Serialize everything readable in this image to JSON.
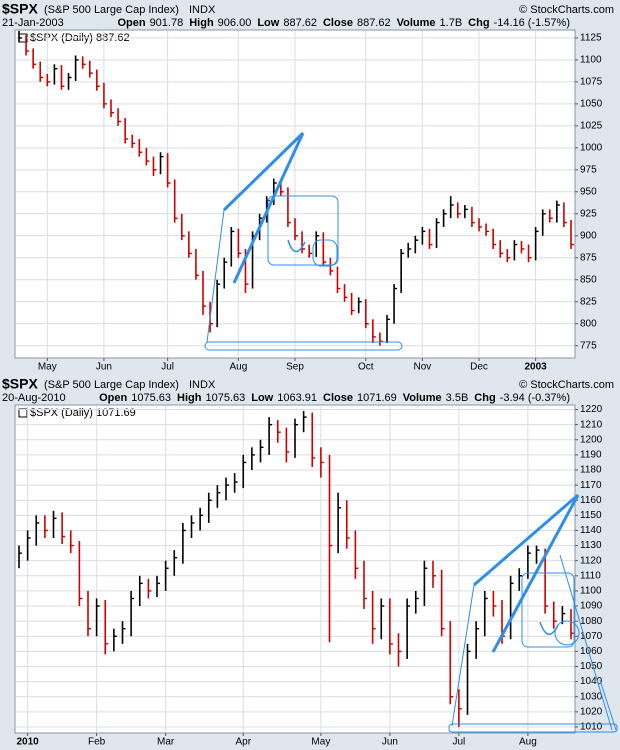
{
  "chart_data": [
    {
      "type": "ohlc",
      "symbol": "$SPX",
      "name": "(S&P 500 Large Cap Index)",
      "exchange": "INDX",
      "credit": "© StockCharts.com",
      "date": "21-Jan-2003",
      "quote": [
        {
          "label": "Open",
          "value": "901.78"
        },
        {
          "label": "High",
          "value": "906.00"
        },
        {
          "label": "Low",
          "value": "887.62"
        },
        {
          "label": "Close",
          "value": "887.62"
        },
        {
          "label": "Volume",
          "value": "1.7B"
        },
        {
          "label": "Chg",
          "value": "-14.16 (-1.57%)"
        }
      ],
      "legend": "$SPX (Daily) 887.62",
      "up_color": "#000000",
      "down_color": "#cc0000",
      "grid": true,
      "high": [
        1133,
        1128,
        1113,
        1098,
        1084,
        1095,
        1094,
        1085,
        1105,
        1104,
        1099,
        1089,
        1074,
        1055,
        1045,
        1034,
        1015,
        1010,
        1000,
        990,
        995,
        994,
        964,
        925,
        905,
        885,
        860,
        825,
        850,
        875,
        910,
        908,
        885,
        905,
        925,
        945,
        965,
        964,
        955,
        920,
        905,
        890,
        905,
        904,
        875,
        865,
        845,
        835,
        830,
        828,
        805,
        790,
        810,
        845,
        885,
        892,
        900,
        910,
        908,
        920,
        930,
        945,
        938,
        935,
        933,
        920,
        914,
        908,
        895,
        885,
        895,
        894,
        890,
        910,
        930,
        930,
        940,
        938,
        918
      ],
      "low": [
        1120,
        1105,
        1090,
        1075,
        1070,
        1072,
        1066,
        1066,
        1076,
        1090,
        1080,
        1065,
        1045,
        1035,
        1025,
        1005,
        1000,
        990,
        980,
        968,
        970,
        955,
        915,
        895,
        875,
        850,
        810,
        790,
        796,
        840,
        865,
        875,
        835,
        840,
        895,
        915,
        935,
        945,
        910,
        895,
        880,
        875,
        876,
        865,
        855,
        835,
        825,
        810,
        812,
        795,
        778,
        775,
        778,
        800,
        835,
        875,
        880,
        890,
        885,
        886,
        910,
        920,
        920,
        920,
        910,
        905,
        900,
        885,
        875,
        870,
        872,
        880,
        870,
        872,
        900,
        915,
        915,
        910,
        885
      ],
      "close": [
        1125,
        1110,
        1095,
        1080,
        1075,
        1090,
        1070,
        1080,
        1100,
        1095,
        1085,
        1070,
        1050,
        1040,
        1030,
        1010,
        1005,
        995,
        985,
        975,
        990,
        960,
        920,
        900,
        880,
        855,
        820,
        800,
        845,
        870,
        905,
        880,
        845,
        900,
        920,
        940,
        960,
        950,
        915,
        900,
        885,
        880,
        900,
        870,
        860,
        840,
        830,
        815,
        825,
        800,
        785,
        780,
        805,
        840,
        880,
        885,
        895,
        905,
        890,
        915,
        925,
        935,
        925,
        930,
        915,
        910,
        905,
        890,
        880,
        875,
        890,
        885,
        875,
        905,
        925,
        920,
        935,
        915,
        890
      ],
      "ylim": [
        761,
        1134
      ],
      "yticks": [
        775,
        800,
        825,
        850,
        875,
        900,
        925,
        950,
        975,
        1000,
        1025,
        1050,
        1075,
        1100,
        1125
      ],
      "xticks": [
        {
          "value": 4,
          "label": "May"
        },
        {
          "value": 12,
          "label": "Jun"
        },
        {
          "value": 21,
          "label": "Jul"
        },
        {
          "value": 31,
          "label": "Aug"
        },
        {
          "value": 39,
          "label": "Sep"
        },
        {
          "value": 49,
          "label": "Oct"
        },
        {
          "value": 57,
          "label": "Nov"
        },
        {
          "value": 65,
          "label": "Dec"
        },
        {
          "value": 73,
          "label": "2003"
        }
      ]
    },
    {
      "type": "ohlc",
      "symbol": "$SPX",
      "name": "(S&P 500 Large Cap Index)",
      "exchange": "INDX",
      "credit": "© StockCharts.com",
      "date": "20-Aug-2010",
      "quote": [
        {
          "label": "Open",
          "value": "1075.63"
        },
        {
          "label": "High",
          "value": "1075.63"
        },
        {
          "label": "Low",
          "value": "1063.91"
        },
        {
          "label": "Close",
          "value": "1071.69"
        },
        {
          "label": "Volume",
          "value": "3.5B"
        },
        {
          "label": "Chg",
          "value": "-3.94 (-0.37%)"
        }
      ],
      "legend": "$SPX (Daily) 1071.69",
      "up_color": "#000000",
      "down_color": "#cc0000",
      "grid": true,
      "high": [
        1130,
        1140,
        1150,
        1150,
        1153,
        1152,
        1140,
        1133,
        1100,
        1095,
        1094,
        1075,
        1080,
        1100,
        1110,
        1108,
        1110,
        1120,
        1127,
        1145,
        1150,
        1155,
        1165,
        1170,
        1175,
        1178,
        1190,
        1195,
        1200,
        1215,
        1213,
        1208,
        1214,
        1219,
        1218,
        1195,
        1190,
        1165,
        1160,
        1140,
        1120,
        1100,
        1095,
        1095,
        1072,
        1095,
        1100,
        1120,
        1120,
        1114,
        1080,
        1035,
        1065,
        1080,
        1100,
        1100,
        1094,
        1110,
        1115,
        1130,
        1130,
        1128,
        1093,
        1090,
        1088
      ],
      "low": [
        1115,
        1120,
        1130,
        1135,
        1135,
        1131,
        1125,
        1090,
        1070,
        1070,
        1058,
        1060,
        1065,
        1070,
        1090,
        1095,
        1096,
        1100,
        1110,
        1118,
        1135,
        1140,
        1145,
        1155,
        1160,
        1165,
        1168,
        1180,
        1185,
        1190,
        1198,
        1185,
        1188,
        1205,
        1182,
        1175,
        1066,
        1125,
        1128,
        1108,
        1088,
        1065,
        1068,
        1058,
        1050,
        1055,
        1085,
        1090,
        1102,
        1070,
        1025,
        1010,
        1018,
        1055,
        1070,
        1083,
        1065,
        1068,
        1100,
        1108,
        1118,
        1085,
        1075,
        1078,
        1068
      ],
      "close": [
        1125,
        1135,
        1145,
        1140,
        1148,
        1136,
        1130,
        1095,
        1075,
        1090,
        1065,
        1070,
        1075,
        1095,
        1105,
        1100,
        1105,
        1115,
        1122,
        1140,
        1145,
        1150,
        1160,
        1165,
        1170,
        1172,
        1185,
        1190,
        1195,
        1210,
        1205,
        1192,
        1210,
        1215,
        1188,
        1185,
        1130,
        1155,
        1135,
        1115,
        1095,
        1075,
        1090,
        1065,
        1060,
        1090,
        1095,
        1115,
        1110,
        1075,
        1030,
        1022,
        1060,
        1075,
        1095,
        1090,
        1070,
        1105,
        1110,
        1125,
        1127,
        1090,
        1080,
        1085,
        1072
      ],
      "ylim": [
        1006,
        1223
      ],
      "yticks": [
        1010,
        1020,
        1030,
        1040,
        1050,
        1060,
        1070,
        1080,
        1090,
        1100,
        1110,
        1120,
        1130,
        1140,
        1150,
        1160,
        1170,
        1180,
        1190,
        1200,
        1210,
        1220
      ],
      "xticks": [
        {
          "value": 1,
          "label": "2010"
        },
        {
          "value": 9,
          "label": "Feb"
        },
        {
          "value": 17,
          "label": "Mar"
        },
        {
          "value": 26,
          "label": "Apr"
        },
        {
          "value": 35,
          "label": "May"
        },
        {
          "value": 43,
          "label": "Jun"
        },
        {
          "value": 51,
          "label": "Jul"
        },
        {
          "value": 59,
          "label": "Aug"
        }
      ]
    }
  ]
}
